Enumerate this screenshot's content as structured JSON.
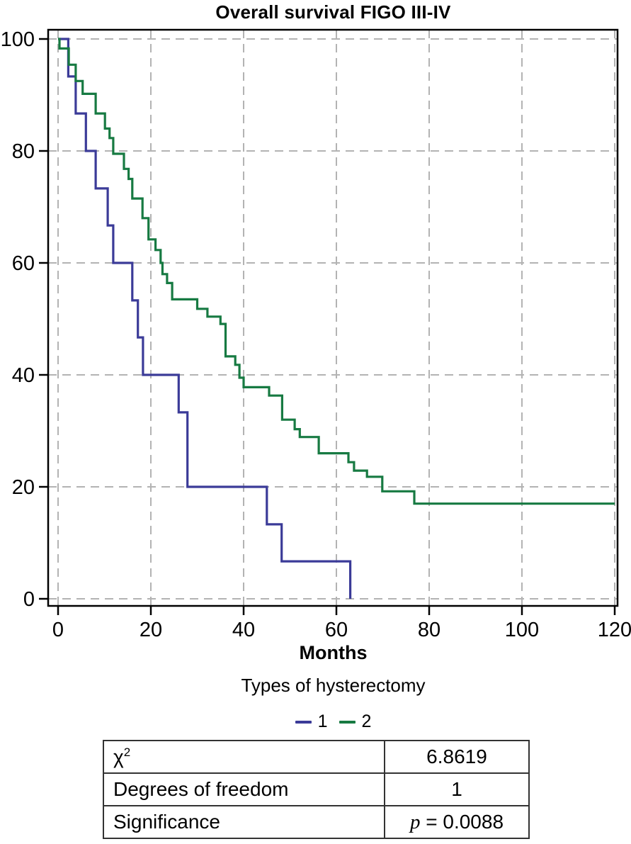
{
  "page": {
    "background": "#ffffff"
  },
  "chart_data": {
    "type": "line",
    "style": "kaplan-meier-step-survival",
    "title": "Overall survival FIGO III-IV",
    "xlabel": "Months",
    "ylabel": "",
    "legend_title": "Types of hysterectomy",
    "legend_position": "bottom",
    "xlim": [
      0,
      120
    ],
    "ylim": [
      0,
      100
    ],
    "xticks": [
      0,
      20,
      40,
      60,
      80,
      100,
      120
    ],
    "yticks": [
      0,
      20,
      40,
      60,
      80,
      100
    ],
    "grid": {
      "shown": true,
      "style": "dashed",
      "color": "#b3b3b3"
    },
    "axis_color": "#000000",
    "series": [
      {
        "name": "1",
        "color": "#3B3B98",
        "end_x": 63,
        "steps": [
          [
            0,
            100
          ],
          [
            2.2,
            93.3
          ],
          [
            3.8,
            86.7
          ],
          [
            6.0,
            80.0
          ],
          [
            8.1,
            73.3
          ],
          [
            10.7,
            66.7
          ],
          [
            11.9,
            60.0
          ],
          [
            16.0,
            53.3
          ],
          [
            17.2,
            46.7
          ],
          [
            18.3,
            40.0
          ],
          [
            26.0,
            33.3
          ],
          [
            27.9,
            20.0
          ],
          [
            45.0,
            13.3
          ],
          [
            48.2,
            6.7
          ],
          [
            63.0,
            0.0
          ]
        ]
      },
      {
        "name": "2",
        "color": "#177A42",
        "end_x": 120,
        "steps": [
          [
            0,
            100
          ],
          [
            0.3,
            98.3
          ],
          [
            2.3,
            95.4
          ],
          [
            3.8,
            92.5
          ],
          [
            5.3,
            90.2
          ],
          [
            8.1,
            86.7
          ],
          [
            10.1,
            84.0
          ],
          [
            11.1,
            82.3
          ],
          [
            11.9,
            79.5
          ],
          [
            14.2,
            76.8
          ],
          [
            15.2,
            75.0
          ],
          [
            16.0,
            71.5
          ],
          [
            18.2,
            68.0
          ],
          [
            19.5,
            64.2
          ],
          [
            21.0,
            62.3
          ],
          [
            22.1,
            60.0
          ],
          [
            22.5,
            58.0
          ],
          [
            23.5,
            56.4
          ],
          [
            24.6,
            53.5
          ],
          [
            30.0,
            51.8
          ],
          [
            32.2,
            50.4
          ],
          [
            35.0,
            49.1
          ],
          [
            36.1,
            43.3
          ],
          [
            38.2,
            41.8
          ],
          [
            39.1,
            39.5
          ],
          [
            40.0,
            37.8
          ],
          [
            45.5,
            36.3
          ],
          [
            48.3,
            32.0
          ],
          [
            51.0,
            30.3
          ],
          [
            52.1,
            28.9
          ],
          [
            56.2,
            26.0
          ],
          [
            62.6,
            24.4
          ],
          [
            63.8,
            22.9
          ],
          [
            66.6,
            21.8
          ],
          [
            69.9,
            19.2
          ],
          [
            76.8,
            17.0
          ]
        ]
      }
    ]
  },
  "stats_table": {
    "rows": [
      {
        "label": "χ",
        "label_sup": "2",
        "value": "6.8619"
      },
      {
        "label": "Degrees of freedom",
        "value": "1"
      },
      {
        "label": "Significance",
        "value_prefix_italic": "p",
        "value": " = 0.0088"
      }
    ]
  }
}
